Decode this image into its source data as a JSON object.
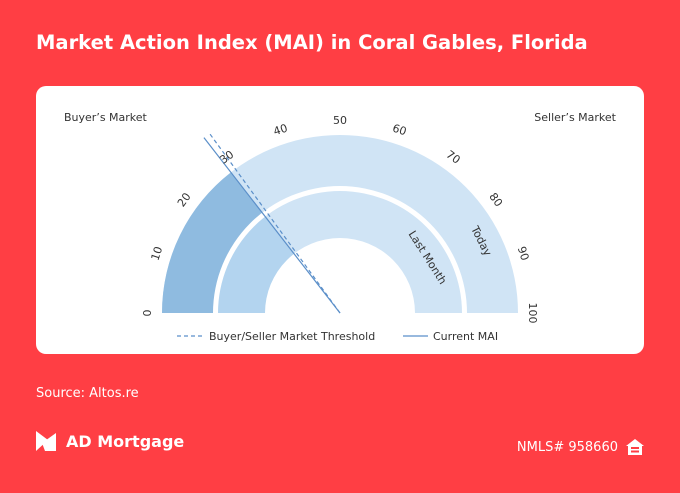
{
  "title": "Market Action Index (MAI) in Coral Gables, Florida",
  "source": "Source: Altos.re",
  "brand": {
    "name": "AD Mortgage",
    "logo_icon": "ad-mortgage-logo-icon"
  },
  "nmls": "NMLS# 958660",
  "equal_housing_icon": "equal-housing-icon",
  "chart_data": {
    "type": "gauge",
    "scale": [
      0,
      100
    ],
    "ticks": [
      "0",
      "10",
      "20",
      "30",
      "40",
      "50",
      "60",
      "70",
      "80",
      "90",
      "100"
    ],
    "left_label": "Buyer’s Market",
    "right_label": "Seller’s Market",
    "threshold": 30,
    "current_mai": 29,
    "series": [
      {
        "name": "Today",
        "value": 29
      },
      {
        "name": "Last Month",
        "value": 29
      }
    ],
    "legend": [
      {
        "name": "Buyer/Seller Market Threshold",
        "style": "dashed"
      },
      {
        "name": "Current MAI",
        "style": "solid"
      }
    ],
    "legend_position": "bottom",
    "colors": {
      "track": "#d0e4f5",
      "today_fill": "#8fbbe0",
      "last_month_fill": "#b3d4ef",
      "line": "#5b8fc9",
      "text": "#333333"
    }
  }
}
